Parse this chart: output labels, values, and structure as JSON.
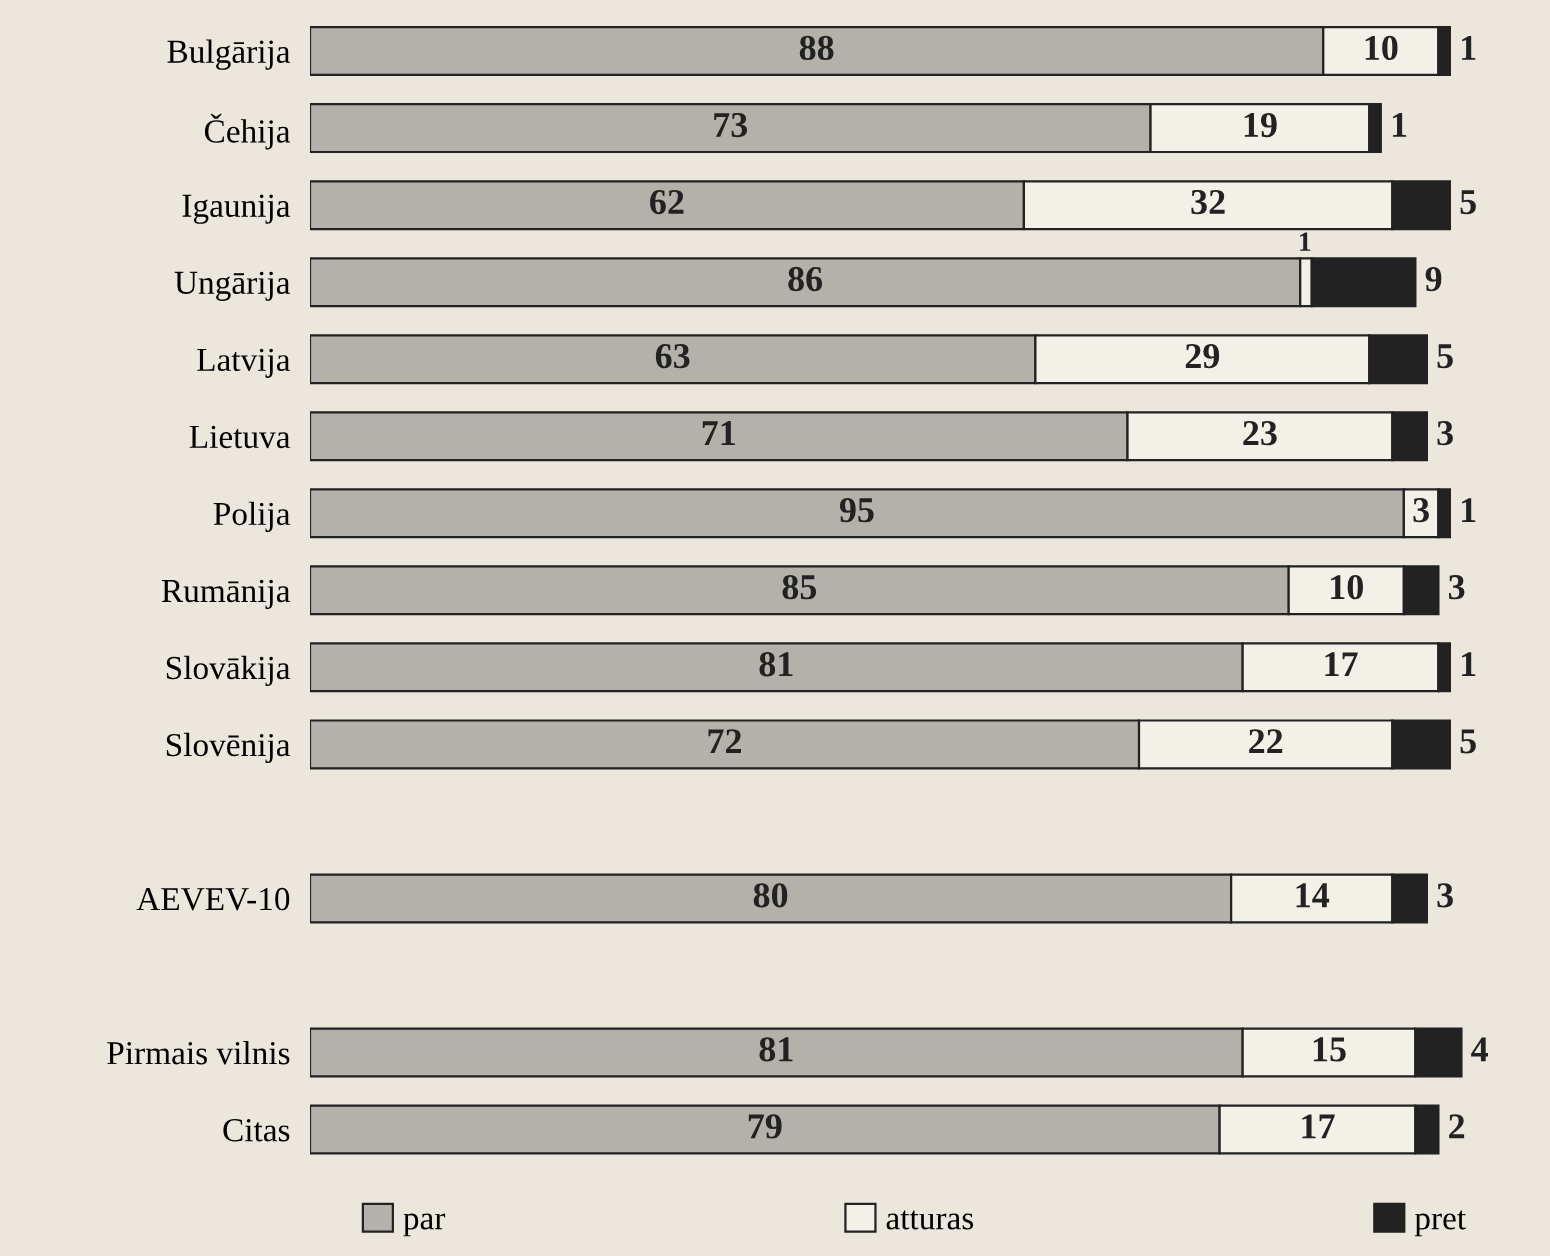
{
  "chart_data": {
    "type": "bar",
    "orientation": "horizontal",
    "stacked": true,
    "data_labels": true,
    "tick_labels": "y",
    "grid": false,
    "legend": "bottom",
    "categories": [
      "Bulgārija",
      "Čehija",
      "Igaunija",
      "Ungārija",
      "Latvija",
      "Lietuva",
      "Polija",
      "Rumānija",
      "Slovākija",
      "Slovēnija",
      null,
      "AEVEV-10",
      null,
      "Pirmais vilnis",
      "Citas"
    ],
    "series": [
      {
        "name": "par",
        "color": "#b4b1aa",
        "values": [
          88,
          73,
          62,
          86,
          63,
          71,
          95,
          85,
          81,
          72,
          null,
          80,
          null,
          81,
          79
        ]
      },
      {
        "name": "atturas",
        "color": "#f3f0e8",
        "values": [
          10,
          19,
          32,
          1,
          29,
          23,
          3,
          10,
          17,
          22,
          null,
          14,
          null,
          15,
          17
        ]
      },
      {
        "name": "pret",
        "color": "#222222",
        "values": [
          1,
          1,
          5,
          9,
          5,
          3,
          1,
          3,
          1,
          5,
          null,
          3,
          null,
          4,
          2
        ]
      }
    ]
  }
}
